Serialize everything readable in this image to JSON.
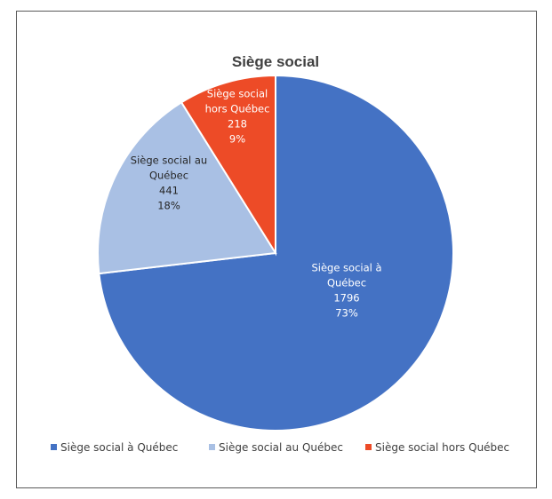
{
  "chart_data": {
    "type": "pie",
    "title": "Siège social",
    "slices": [
      {
        "name": "Siège social à Québec",
        "value": 1796,
        "percent": "73%",
        "color": "#4472C4",
        "label_color": "#ffffff",
        "label_lines": [
          "Siège social à",
          "Québec",
          "1796",
          "73%"
        ]
      },
      {
        "name": "Siège social au Québec",
        "value": 441,
        "percent": "18%",
        "color": "#A9C0E4",
        "label_color": "#262626",
        "label_lines": [
          "Siège social au",
          "Québec",
          "441",
          "18%"
        ]
      },
      {
        "name": "Siège social hors Québec",
        "value": 218,
        "percent": "9%",
        "color": "#ED4B27",
        "label_color": "#ffffff",
        "label_lines": [
          "Siège social",
          "hors Québec",
          "218",
          "9%"
        ]
      }
    ],
    "legend": {
      "position": "bottom",
      "items": [
        "Siège social à Québec",
        "Siège social au Québec",
        "Siège social hors Québec"
      ]
    }
  }
}
